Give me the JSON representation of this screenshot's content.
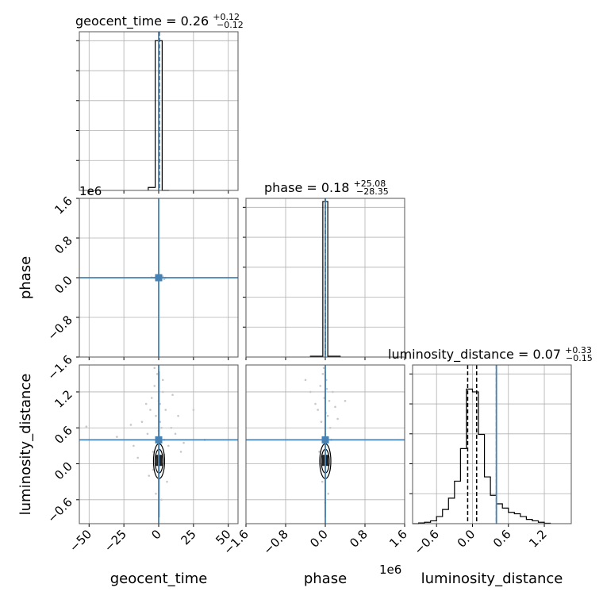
{
  "chart_data": {
    "type": "corner",
    "parameters": [
      "geocent_time",
      "phase",
      "luminosity_distance"
    ],
    "titles": {
      "geocent_time": {
        "name": "geocent_time",
        "median": "0.26",
        "plus": "+0.12",
        "minus": "−0.12"
      },
      "phase": {
        "name": "phase",
        "median": "0.18",
        "plus": "+25.08",
        "minus": "−28.35"
      },
      "luminosity_distance": {
        "name": "luminosity_distance",
        "median": "0.07",
        "plus": "+0.33",
        "minus": "−0.15"
      }
    },
    "axis_labels": {
      "x": [
        "geocent_time",
        "phase",
        "luminosity_distance"
      ],
      "y": [
        "phase",
        "luminosity_distance"
      ]
    },
    "ranges": {
      "geocent_time": [
        -57,
        57
      ],
      "phase": [
        -1600000,
        1600000
      ],
      "luminosity_distance": [
        -1.0,
        1.65
      ]
    },
    "ticks": {
      "geocent_time": [
        {
          "v": -50,
          "label": "−50"
        },
        {
          "v": -25,
          "label": "−25"
        },
        {
          "v": 0,
          "label": "0"
        },
        {
          "v": 25,
          "label": "25"
        },
        {
          "v": 50,
          "label": "50"
        }
      ],
      "phase": [
        {
          "v": -1600000,
          "label": "−1.6"
        },
        {
          "v": -800000,
          "label": "−0.8"
        },
        {
          "v": 0,
          "label": "0.0"
        },
        {
          "v": 800000,
          "label": "0.8"
        },
        {
          "v": 1600000,
          "label": "1.6"
        }
      ],
      "luminosity_distance": [
        {
          "v": -0.6,
          "label": "−0.6"
        },
        {
          "v": 0.0,
          "label": "0.0"
        },
        {
          "v": 0.6,
          "label": "0.6"
        },
        {
          "v": 1.2,
          "label": "1.2"
        }
      ]
    },
    "offset_labels": {
      "phase_y": "1e6",
      "phase_x": "1e6"
    },
    "truths": {
      "geocent_time": 0.0,
      "phase": 0.0,
      "luminosity_distance": 0.4
    },
    "quantiles": {
      "geocent_time": [
        0.14,
        0.26,
        0.38
      ],
      "phase": [
        -28.17,
        0.18,
        25.26
      ],
      "luminosity_distance": [
        -0.08,
        0.07,
        0.4
      ]
    },
    "histograms": {
      "geocent_time": {
        "edges": [
          -7.5,
          -2.5,
          2.5,
          7.5
        ],
        "counts": [
          2,
          100,
          0
        ],
        "ymax": 106
      },
      "phase": {
        "edges": [
          -300000,
          -50000,
          50000,
          300000
        ],
        "counts": [
          0.5,
          100,
          0.5
        ],
        "ymax": 102
      },
      "luminosity_distance": {
        "edges": [
          -1.0,
          -0.9,
          -0.8,
          -0.7,
          -0.6,
          -0.5,
          -0.4,
          -0.3,
          -0.2,
          -0.1,
          0.0,
          0.1,
          0.2,
          0.3,
          0.4,
          0.5,
          0.6,
          0.7,
          0.8,
          0.9,
          1.0,
          1.1,
          1.2,
          1.3
        ],
        "counts": [
          0,
          0.5,
          1,
          2,
          5,
          10,
          18,
          30,
          53,
          95,
          93,
          63,
          33,
          20,
          14,
          11,
          8,
          7,
          5,
          3,
          2,
          1,
          0.3
        ],
        "ymax": 112
      }
    },
    "scatter": {
      "geocent_time_vs_phase": {
        "x": [
          -3,
          1,
          2,
          -1,
          4,
          -5,
          3,
          0,
          5,
          -2
        ],
        "y": [
          0,
          20000,
          -15000,
          10000,
          -30000,
          5000,
          25000,
          -20000,
          0,
          15000
        ]
      },
      "geocent_time_vs_luminosity_distance": {
        "x": [
          -18,
          -12,
          -8,
          -6,
          -5,
          -4,
          -3,
          -2,
          -1,
          1,
          2,
          3,
          4,
          5,
          7,
          9,
          12,
          16,
          -15,
          14,
          -7,
          6,
          -3,
          3,
          -2,
          2,
          -1,
          1,
          0,
          0,
          -9,
          10,
          -4,
          4,
          -20,
          18,
          -52,
          33,
          -30,
          25
        ],
        "y": [
          0.3,
          0.7,
          0.5,
          0.9,
          1.1,
          0.2,
          1.3,
          0.8,
          1.5,
          1.0,
          0.6,
          1.2,
          0.4,
          0.9,
          0.3,
          0.6,
          0.5,
          0.2,
          0.1,
          0.8,
          -0.2,
          -0.3,
          1.6,
          1.4,
          -0.5,
          -0.6,
          0.4,
          0.7,
          1.05,
          0.55,
          1.0,
          1.15,
          -0.1,
          0.15,
          0.65,
          0.35,
          0.62,
          0.4,
          0.45,
          0.9
        ]
      },
      "phase_vs_luminosity_distance": {
        "x": [
          -300000,
          -200000,
          -150000,
          -100000,
          -80000,
          -50000,
          -20000,
          20000,
          50000,
          80000,
          100000,
          150000,
          200000,
          250000,
          -60000,
          60000,
          -30000,
          30000,
          0,
          0,
          -400000,
          400000,
          120000,
          -120000,
          10000
        ],
        "y": [
          1.2,
          1.0,
          0.9,
          1.3,
          0.7,
          1.5,
          1.1,
          1.4,
          0.8,
          1.05,
          0.6,
          1.2,
          0.95,
          0.75,
          -0.3,
          -0.5,
          1.6,
          1.25,
          -0.65,
          0.5,
          1.4,
          1.05,
          0.4,
          0.2,
          0.85
        ]
      }
    },
    "colors": {
      "truth": "#4682b4",
      "hist": "#000000",
      "grid": "#b0b0b0",
      "scatter": "#c8c8c8"
    }
  }
}
